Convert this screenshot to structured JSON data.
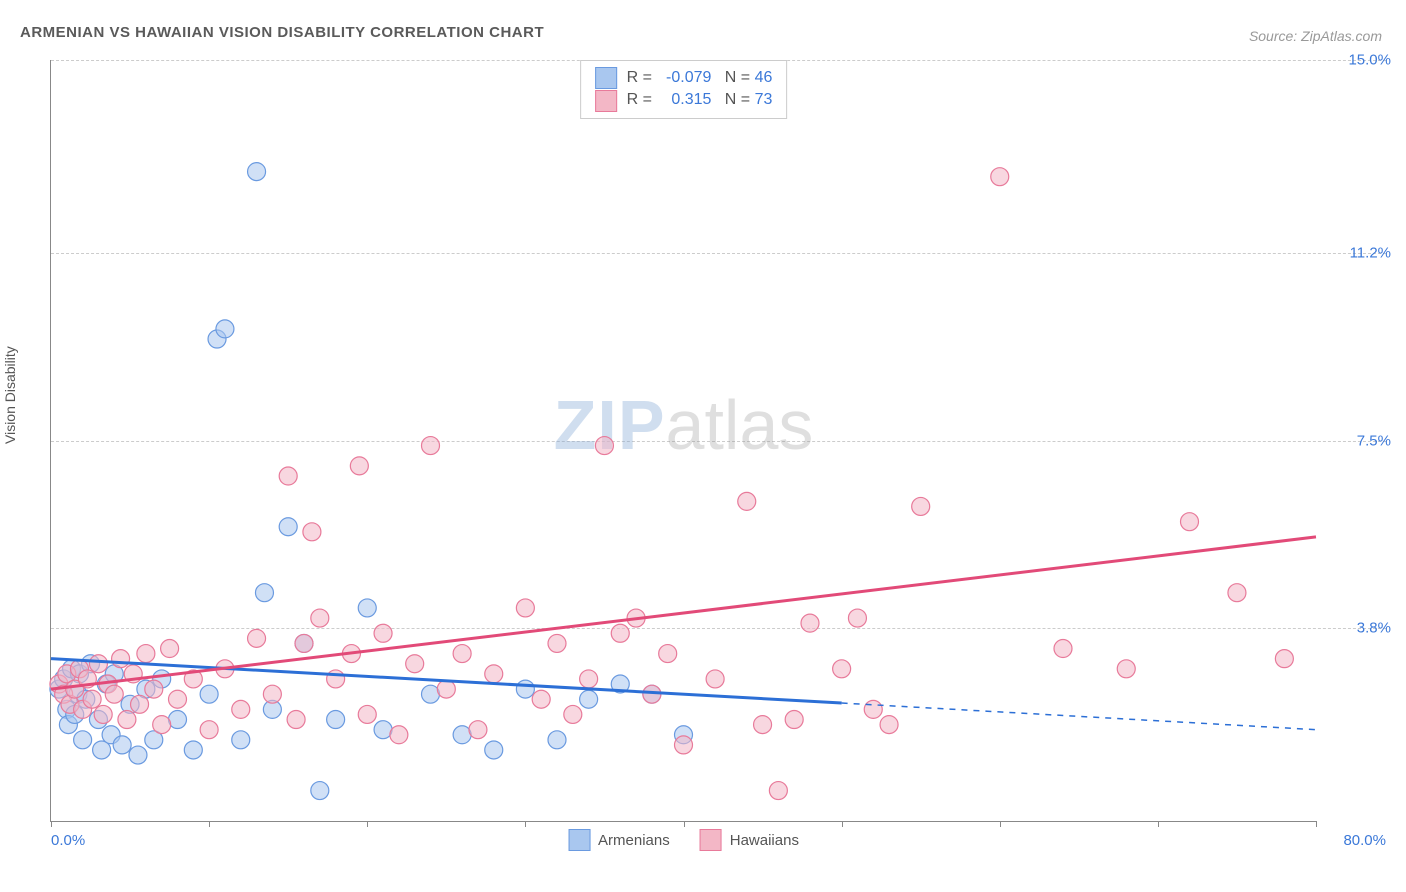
{
  "title": "ARMENIAN VS HAWAIIAN VISION DISABILITY CORRELATION CHART",
  "source": "Source: ZipAtlas.com",
  "y_axis_label": "Vision Disability",
  "watermark_a": "ZIP",
  "watermark_b": "atlas",
  "chart": {
    "type": "scatter",
    "xlim": [
      0,
      80
    ],
    "ylim": [
      0,
      15
    ],
    "x_tick_positions": [
      0,
      10,
      20,
      30,
      40,
      50,
      60,
      70,
      80
    ],
    "x_label_min": "0.0%",
    "x_label_max": "80.0%",
    "y_gridlines": [
      {
        "value": 3.8,
        "label": "3.8%"
      },
      {
        "value": 7.5,
        "label": "7.5%"
      },
      {
        "value": 11.2,
        "label": "11.2%"
      },
      {
        "value": 15.0,
        "label": "15.0%"
      }
    ],
    "background_color": "#ffffff",
    "grid_color": "#cccccc",
    "axis_color": "#888888",
    "marker_radius": 9,
    "series": [
      {
        "name": "Armenians",
        "label": "Armenians",
        "fill": "#a9c7ef",
        "stroke": "#6a9ae0",
        "fill_opacity": 0.55,
        "R": "-0.079",
        "N": "46",
        "trend": {
          "y_at_x0": 3.2,
          "y_at_x80": 1.8,
          "solid_until_x": 50,
          "color": "#2c6fd6",
          "width": 3
        },
        "points": [
          [
            0.5,
            2.6
          ],
          [
            0.8,
            2.8
          ],
          [
            1.0,
            2.2
          ],
          [
            1.1,
            1.9
          ],
          [
            1.3,
            3.0
          ],
          [
            1.5,
            2.1
          ],
          [
            1.7,
            2.5
          ],
          [
            1.8,
            2.9
          ],
          [
            2.0,
            1.6
          ],
          [
            2.2,
            2.4
          ],
          [
            2.5,
            3.1
          ],
          [
            3.0,
            2.0
          ],
          [
            3.2,
            1.4
          ],
          [
            3.5,
            2.7
          ],
          [
            3.8,
            1.7
          ],
          [
            4.0,
            2.9
          ],
          [
            4.5,
            1.5
          ],
          [
            5.0,
            2.3
          ],
          [
            5.5,
            1.3
          ],
          [
            6.0,
            2.6
          ],
          [
            6.5,
            1.6
          ],
          [
            7.0,
            2.8
          ],
          [
            8.0,
            2.0
          ],
          [
            9.0,
            1.4
          ],
          [
            10.0,
            2.5
          ],
          [
            10.5,
            9.5
          ],
          [
            11.0,
            9.7
          ],
          [
            12.0,
            1.6
          ],
          [
            13.0,
            12.8
          ],
          [
            13.5,
            4.5
          ],
          [
            14.0,
            2.2
          ],
          [
            15.0,
            5.8
          ],
          [
            16.0,
            3.5
          ],
          [
            17.0,
            0.6
          ],
          [
            18.0,
            2.0
          ],
          [
            20.0,
            4.2
          ],
          [
            21.0,
            1.8
          ],
          [
            24.0,
            2.5
          ],
          [
            26.0,
            1.7
          ],
          [
            28.0,
            1.4
          ],
          [
            30.0,
            2.6
          ],
          [
            32.0,
            1.6
          ],
          [
            34.0,
            2.4
          ],
          [
            36.0,
            2.7
          ],
          [
            38.0,
            2.5
          ],
          [
            40.0,
            1.7
          ]
        ]
      },
      {
        "name": "Hawaiians",
        "label": "Hawaiians",
        "fill": "#f3b7c6",
        "stroke": "#e87a9a",
        "fill_opacity": 0.55,
        "R": "0.315",
        "N": "73",
        "trend": {
          "y_at_x0": 2.6,
          "y_at_x80": 5.6,
          "solid_until_x": 80,
          "color": "#e24a78",
          "width": 3
        },
        "points": [
          [
            0.5,
            2.7
          ],
          [
            0.8,
            2.5
          ],
          [
            1.0,
            2.9
          ],
          [
            1.2,
            2.3
          ],
          [
            1.5,
            2.6
          ],
          [
            1.8,
            3.0
          ],
          [
            2.0,
            2.2
          ],
          [
            2.3,
            2.8
          ],
          [
            2.6,
            2.4
          ],
          [
            3.0,
            3.1
          ],
          [
            3.3,
            2.1
          ],
          [
            3.6,
            2.7
          ],
          [
            4.0,
            2.5
          ],
          [
            4.4,
            3.2
          ],
          [
            4.8,
            2.0
          ],
          [
            5.2,
            2.9
          ],
          [
            5.6,
            2.3
          ],
          [
            6.0,
            3.3
          ],
          [
            6.5,
            2.6
          ],
          [
            7.0,
            1.9
          ],
          [
            7.5,
            3.4
          ],
          [
            8.0,
            2.4
          ],
          [
            9.0,
            2.8
          ],
          [
            10.0,
            1.8
          ],
          [
            11.0,
            3.0
          ],
          [
            12.0,
            2.2
          ],
          [
            13.0,
            3.6
          ],
          [
            14.0,
            2.5
          ],
          [
            15.0,
            6.8
          ],
          [
            15.5,
            2.0
          ],
          [
            16.0,
            3.5
          ],
          [
            16.5,
            5.7
          ],
          [
            17.0,
            4.0
          ],
          [
            18.0,
            2.8
          ],
          [
            19.0,
            3.3
          ],
          [
            19.5,
            7.0
          ],
          [
            20.0,
            2.1
          ],
          [
            21.0,
            3.7
          ],
          [
            22.0,
            1.7
          ],
          [
            23.0,
            3.1
          ],
          [
            24.0,
            7.4
          ],
          [
            25.0,
            2.6
          ],
          [
            26.0,
            3.3
          ],
          [
            27.0,
            1.8
          ],
          [
            28.0,
            2.9
          ],
          [
            30.0,
            4.2
          ],
          [
            31.0,
            2.4
          ],
          [
            32.0,
            3.5
          ],
          [
            33.0,
            2.1
          ],
          [
            34.0,
            2.8
          ],
          [
            35.0,
            7.4
          ],
          [
            36.0,
            3.7
          ],
          [
            37.0,
            4.0
          ],
          [
            38.0,
            2.5
          ],
          [
            39.0,
            3.3
          ],
          [
            40.0,
            1.5
          ],
          [
            42.0,
            2.8
          ],
          [
            44.0,
            6.3
          ],
          [
            45.0,
            1.9
          ],
          [
            46.0,
            0.6
          ],
          [
            47.0,
            2.0
          ],
          [
            48.0,
            3.9
          ],
          [
            50.0,
            3.0
          ],
          [
            51.0,
            4.0
          ],
          [
            52.0,
            2.2
          ],
          [
            53.0,
            1.9
          ],
          [
            55.0,
            6.2
          ],
          [
            60.0,
            12.7
          ],
          [
            64.0,
            3.4
          ],
          [
            68.0,
            3.0
          ],
          [
            72.0,
            5.9
          ],
          [
            75.0,
            4.5
          ],
          [
            78.0,
            3.2
          ]
        ]
      }
    ],
    "legend": {
      "r_label": "R =",
      "n_label": "N ="
    }
  }
}
